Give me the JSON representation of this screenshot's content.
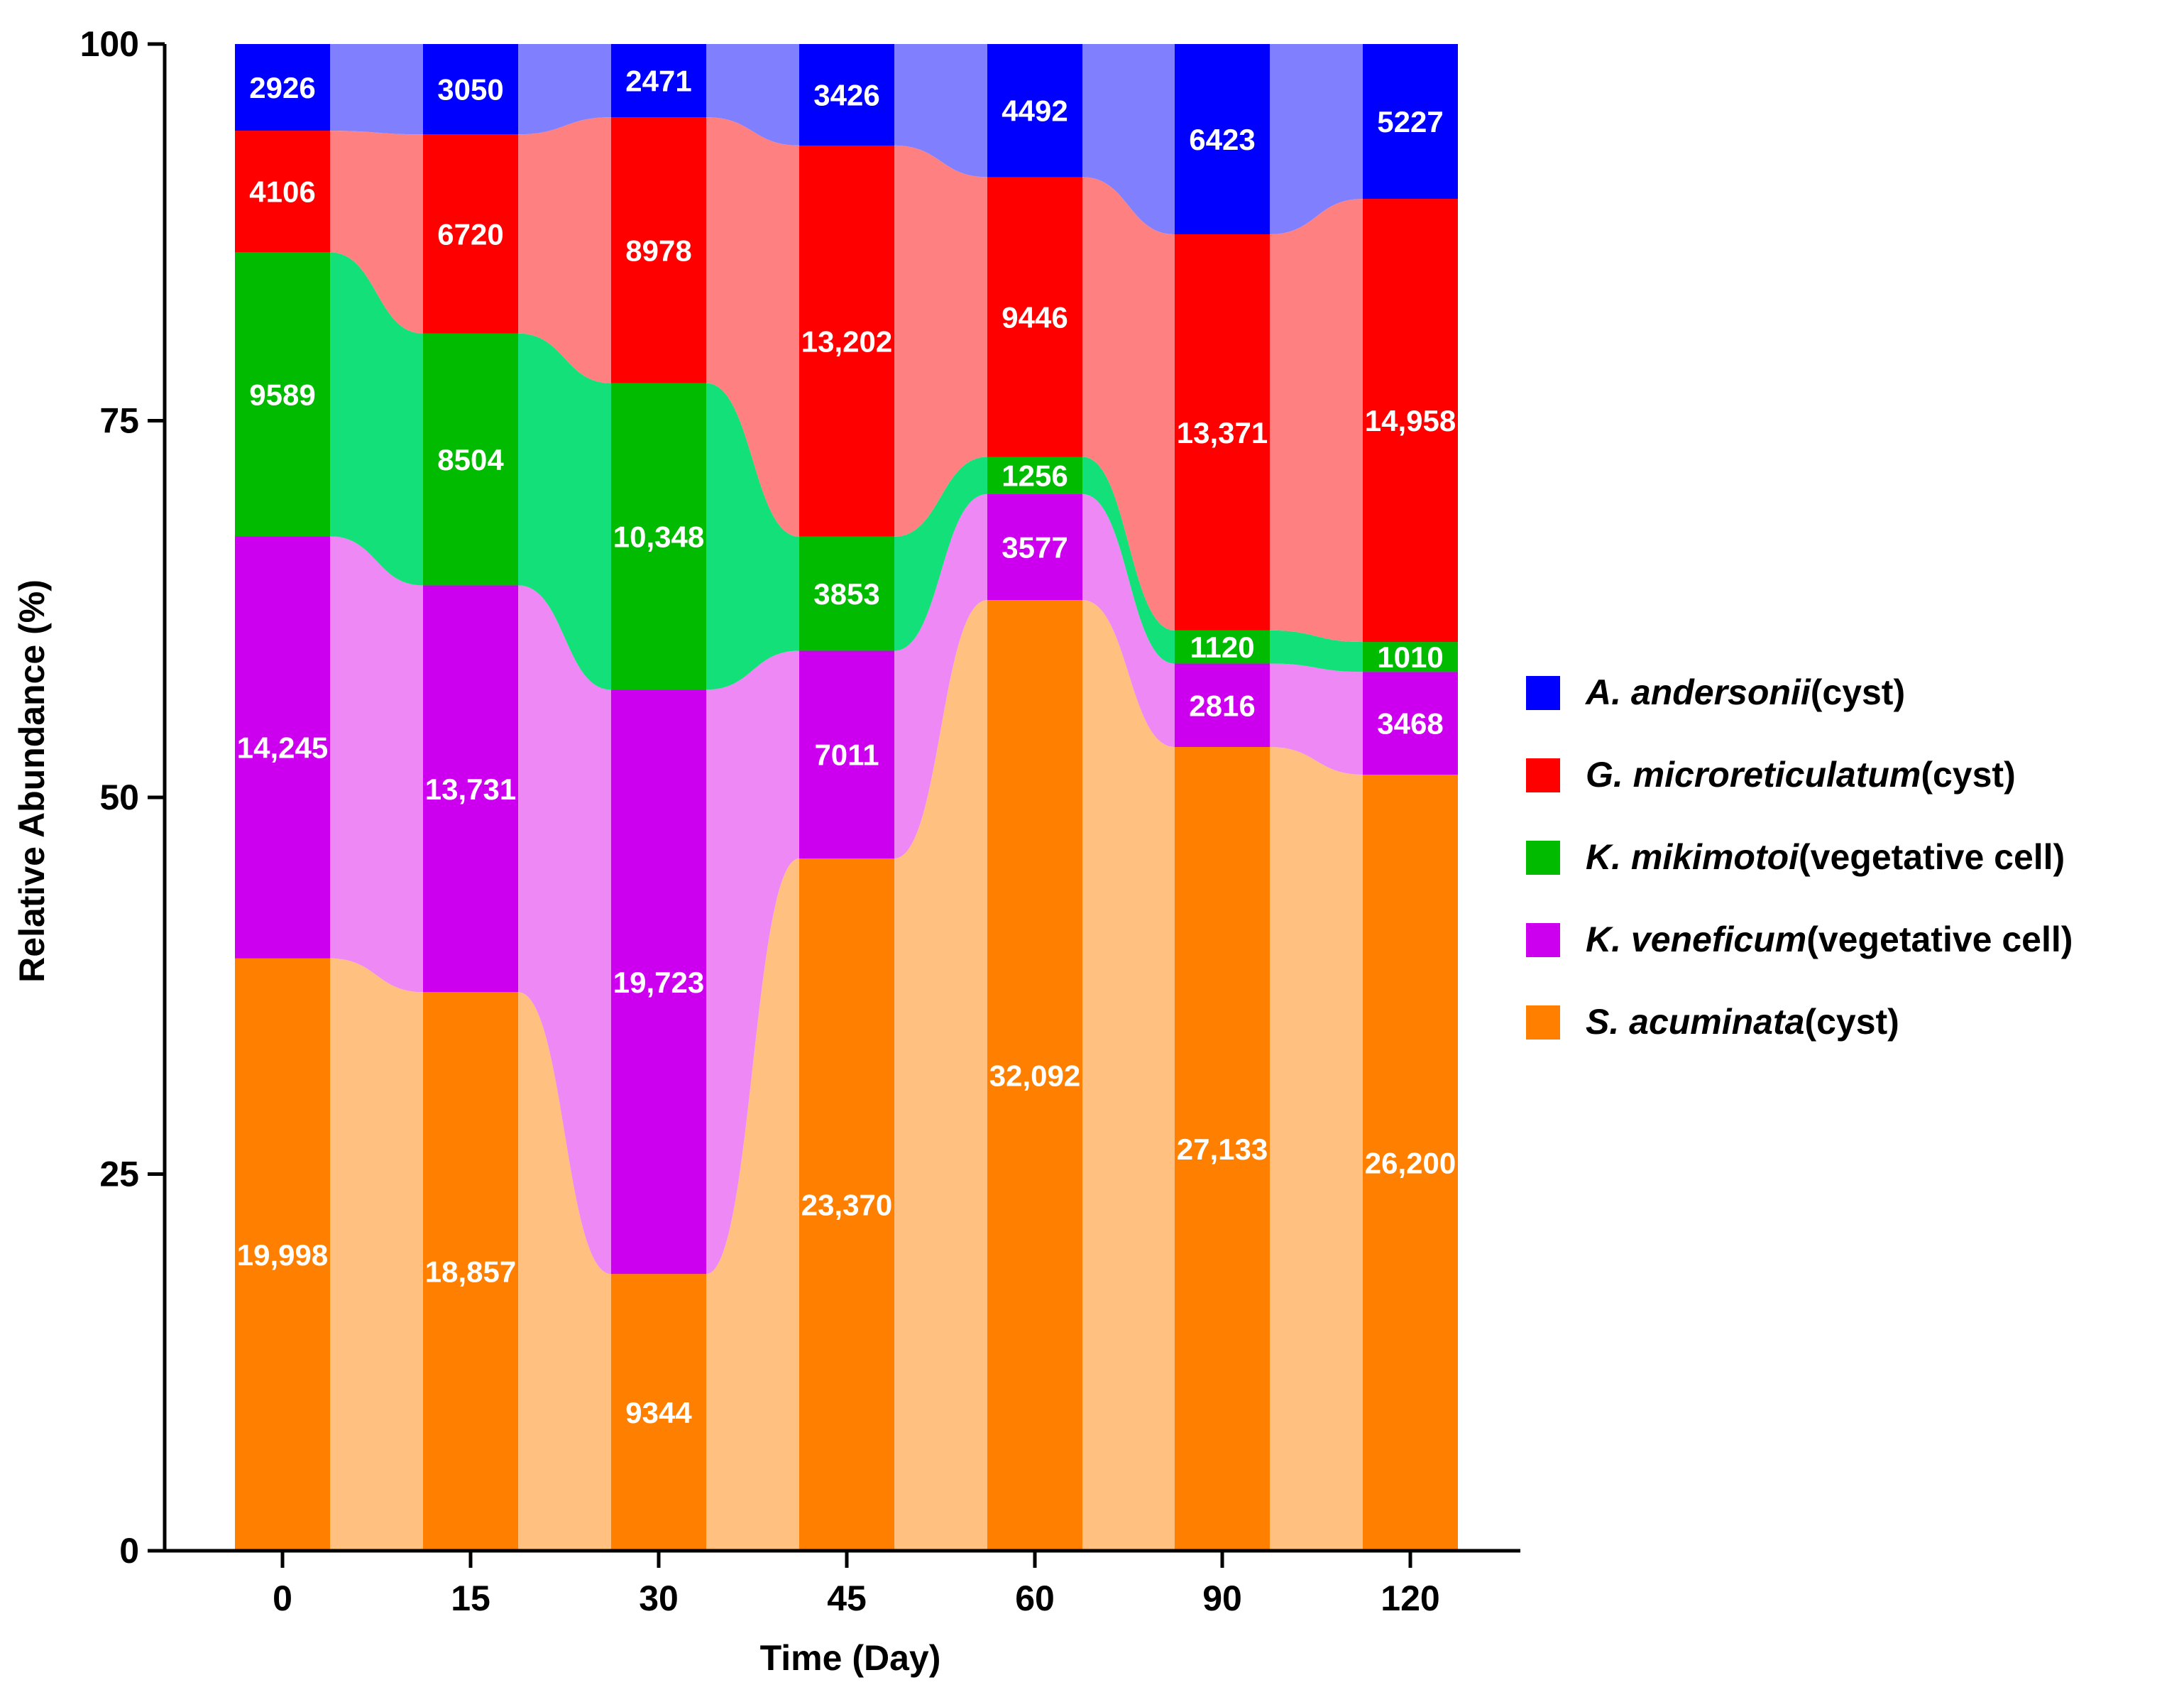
{
  "chart_data": {
    "type": "bar",
    "subtype": "stacked-percent-with-flow-bands",
    "title": "",
    "xlabel": "Time (Day)",
    "ylabel": "Relative Abundance (%)",
    "ylim": [
      0,
      100
    ],
    "y_ticks": [
      "0",
      "25",
      "50",
      "75",
      "100"
    ],
    "categories": [
      "0",
      "15",
      "30",
      "45",
      "60",
      "90",
      "120"
    ],
    "series": [
      {
        "name": "S. acuminata (cyst)",
        "legend_italic": "S. acuminata",
        "legend_suffix": "(cyst)",
        "color": "#FF8000",
        "band_color": "#FFC080",
        "values": [
          19998,
          18857,
          9344,
          23370,
          32092,
          27133,
          26200
        ],
        "labels": [
          "19,998",
          "18,857",
          "9344",
          "23,370",
          "32,092",
          "27,133",
          "26,200"
        ]
      },
      {
        "name": "K. veneficum (vegetative cell)",
        "legend_italic": "K. veneficum",
        "legend_suffix": "(vegetative cell)",
        "color": "#CC00EE",
        "band_color": "#EE88F4",
        "values": [
          14245,
          13731,
          19723,
          7011,
          3577,
          2816,
          3468
        ],
        "labels": [
          "14,245",
          "13,731",
          "19,723",
          "7011",
          "3577",
          "2816",
          "3468"
        ]
      },
      {
        "name": "K. mikimotoi (vegetative cell)",
        "legend_italic": "K. mikimotoi",
        "legend_suffix": "(vegetative cell)",
        "color": "#00BB00",
        "band_color": "#14E07A",
        "values": [
          9589,
          8504,
          10348,
          3853,
          1256,
          1120,
          1010
        ],
        "labels": [
          "9589",
          "8504",
          "10,348",
          "3853",
          "1256",
          "1120",
          "1010"
        ]
      },
      {
        "name": "G. microreticulatum (cyst)",
        "legend_italic": "G. microreticulatum",
        "legend_suffix": "(cyst)",
        "color": "#FF0000",
        "band_color": "#FF8080",
        "values": [
          4106,
          6720,
          8978,
          13202,
          9446,
          13371,
          14958
        ],
        "labels": [
          "4106",
          "6720",
          "8978",
          "13,202",
          "9446",
          "13,371",
          "14,958"
        ]
      },
      {
        "name": "A. andersonii (cyst)",
        "legend_italic": "A. andersonii",
        "legend_suffix": "(cyst)",
        "color": "#0000FF",
        "band_color": "#8080FF",
        "values": [
          2926,
          3050,
          2471,
          3426,
          4492,
          6423,
          5227
        ],
        "labels": [
          "2926",
          "3050",
          "2471",
          "3426",
          "4492",
          "6423",
          "5227"
        ]
      }
    ],
    "legend_order": [
      4,
      3,
      2,
      1,
      0
    ],
    "legend_position": "right"
  }
}
